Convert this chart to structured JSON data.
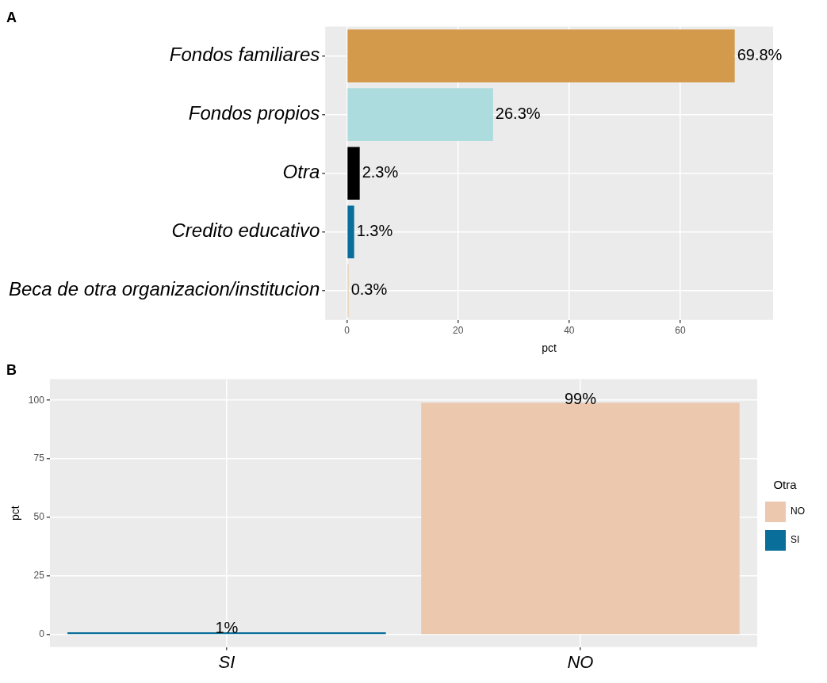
{
  "chart_data": [
    {
      "type": "bar",
      "title": "A",
      "orientation": "horizontal",
      "categories": [
        "Fondos familiares",
        "Fondos propios",
        "Otra",
        "Credito educativo",
        "Beca de otra organizacion/institucion"
      ],
      "values": [
        69.8,
        26.3,
        2.3,
        1.3,
        0.3
      ],
      "colors": [
        "#d49a4c",
        "#acdcdd",
        "#000000",
        "#0a6e9a",
        "#ecc9ae"
      ],
      "value_labels": [
        "69.8%",
        "26.3%",
        "2.3%",
        "1.3%",
        "0.3%"
      ],
      "xlim": [
        -3.9,
        76.7
      ],
      "xticks": [
        0,
        20,
        40,
        60
      ],
      "xlabel": "pct",
      "grid": true
    },
    {
      "type": "bar",
      "title": "B",
      "categories": [
        "SI",
        "NO"
      ],
      "series": [
        {
          "name": "NO",
          "color": "#ecc9ae",
          "values": [
            null,
            99
          ],
          "value_labels": [
            null,
            "99%"
          ]
        },
        {
          "name": "SI",
          "color": "#0a6e9a",
          "values": [
            1,
            null
          ],
          "value_labels": [
            "1%",
            null
          ]
        }
      ],
      "ylim": [
        -5.3,
        109
      ],
      "yticks": [
        0,
        25,
        50,
        75,
        100
      ],
      "ylabel": "pct",
      "legend": "right",
      "legend_title": "Otra",
      "grid": true
    }
  ]
}
